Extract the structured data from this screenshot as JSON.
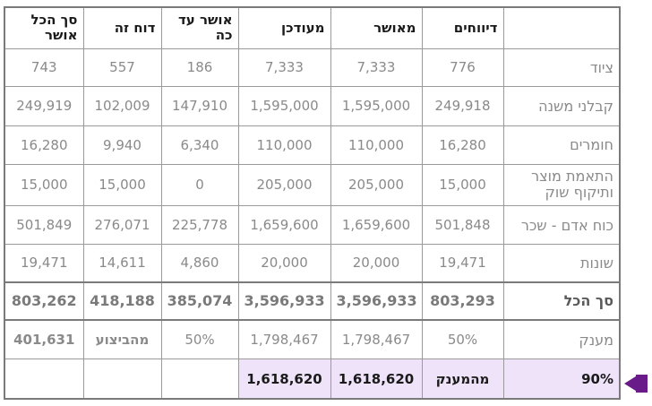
{
  "headers": [
    "סך הכל אושר",
    "דוח זה",
    "אושר עד כה",
    "מעודכן",
    "מאושר",
    "דיווחים",
    ""
  ],
  "rows": [
    {
      "label": "ציוד",
      "values": [
        "743",
        "557",
        "186",
        "7,333",
        "7,333",
        "776"
      ]
    },
    {
      "label": "קבלני משנה",
      "values": [
        "249,919",
        "102,009",
        "147,910",
        "1,595,000",
        "1,595,000",
        "249,918"
      ]
    },
    {
      "label": "חומרים",
      "values": [
        "16,280",
        "9,940",
        "6,340",
        "110,000",
        "110,000",
        "16,280"
      ]
    },
    {
      "label": "התאמת מוצר ותיקוף שוק",
      "values": [
        "15,000",
        "15,000",
        "0",
        "205,000",
        "205,000",
        "15,000"
      ]
    },
    {
      "label": "כוח אדם - שכר",
      "values": [
        "501,849",
        "276,071",
        "225,778",
        "1,659,600",
        "1,659,600",
        "501,848"
      ]
    },
    {
      "label": "שונות",
      "values": [
        "19,471",
        "14,611",
        "4,860",
        "20,000",
        "20,000",
        "19,471"
      ]
    }
  ],
  "total": {
    "label": "סך הכל",
    "values": [
      "803,262",
      "418,188",
      "385,074",
      "3,596,933",
      "3,596,933",
      "803,293"
    ]
  },
  "grant": {
    "label": "מענק",
    "values": [
      "401,631",
      "מהביצוע",
      "50%",
      "1,798,467",
      "1,798,467",
      "50%"
    ]
  },
  "ninety": {
    "label": "90%",
    "values": [
      "",
      "",
      "",
      "1,618,620",
      "1,618,620",
      "מהמענק"
    ]
  }
}
